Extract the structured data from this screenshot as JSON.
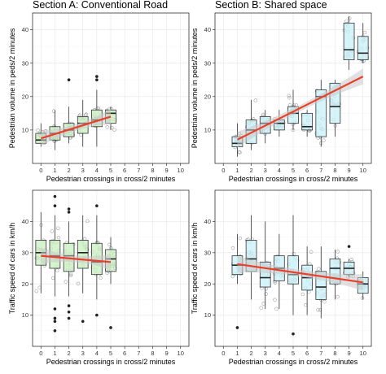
{
  "figure": {
    "section_a_title": "Section A: Conventional Road",
    "section_b_title": "Section B: Shared space",
    "colors": {
      "box_green": "#c8f0c0",
      "box_blue": "#c8f2fa",
      "fit_line": "#e8402a",
      "ribbon": "#c8c8c8",
      "points": "#888888"
    }
  },
  "chart_data": [
    {
      "type": "boxplot",
      "title": "Section A: Conventional Road",
      "xlabel": "Pedestrian crossings in cross/2 minutes",
      "ylabel": "Pedestrian volume in peds/2 minutes",
      "xlim": [
        0,
        10
      ],
      "ylim": [
        0,
        45
      ],
      "xticks": [
        0,
        1,
        2,
        3,
        4,
        5,
        6,
        7,
        8,
        9,
        10
      ],
      "yticks": [
        10,
        20,
        30,
        40
      ],
      "boxes": [
        {
          "x": 0,
          "min": 5,
          "q1": 6,
          "median": 7,
          "q3": 9,
          "max": 12
        },
        {
          "x": 1,
          "min": 4,
          "q1": 7,
          "median": 9,
          "q3": 11,
          "max": 16
        },
        {
          "x": 2,
          "min": 6,
          "q1": 8,
          "median": 10,
          "q3": 12,
          "max": 17,
          "outliers": [
            25
          ]
        },
        {
          "x": 3,
          "min": 5,
          "q1": 9,
          "median": 12,
          "q3": 14,
          "max": 19
        },
        {
          "x": 4,
          "min": 5,
          "q1": 11,
          "median": 13,
          "q3": 16,
          "max": 22,
          "outliers": [
            26,
            25
          ]
        },
        {
          "x": 5,
          "min": 10,
          "q1": 12,
          "median": 15,
          "q3": 16,
          "max": 17
        }
      ],
      "trend": {
        "intercept": 7.5,
        "slope": 1.3,
        "x_range": [
          0,
          5
        ]
      }
    },
    {
      "type": "boxplot",
      "title": "Section B: Shared space",
      "xlabel": "Pedestrian crossings in cross/2 minutes",
      "ylabel": "Pedestrian volume in peds/2 minutes",
      "xlim": [
        0,
        10
      ],
      "ylim": [
        0,
        45
      ],
      "xticks": [
        0,
        1,
        2,
        3,
        4,
        5,
        6,
        7,
        8,
        9,
        10
      ],
      "yticks": [
        10,
        20,
        30,
        40
      ],
      "boxes": [
        {
          "x": 1,
          "min": 2,
          "q1": 5,
          "median": 6,
          "q3": 8,
          "max": 12
        },
        {
          "x": 2,
          "min": 4,
          "q1": 6,
          "median": 10,
          "q3": 13,
          "max": 19
        },
        {
          "x": 3,
          "min": 6,
          "q1": 9,
          "median": 12,
          "q3": 14,
          "max": 16
        },
        {
          "x": 4,
          "min": 8,
          "q1": 10,
          "median": 12,
          "q3": 13,
          "max": 16
        },
        {
          "x": 5,
          "min": 10,
          "q1": 12,
          "median": 15,
          "q3": 17,
          "max": 22
        },
        {
          "x": 6,
          "min": 8,
          "q1": 10,
          "median": 11,
          "q3": 15,
          "max": 16
        },
        {
          "x": 7,
          "min": 5,
          "q1": 8,
          "median": 20,
          "q3": 22,
          "max": 25
        },
        {
          "x": 8,
          "min": 8,
          "q1": 12,
          "median": 17,
          "q3": 24,
          "max": 25
        },
        {
          "x": 9,
          "min": 28,
          "q1": 31,
          "median": 34,
          "q3": 42,
          "max": 44
        },
        {
          "x": 10,
          "min": 30,
          "q1": 31,
          "median": 33,
          "q3": 38,
          "max": 42
        }
      ],
      "trend": {
        "intercept": 5.0,
        "slope": 2.1,
        "x_range": [
          1,
          10
        ]
      }
    },
    {
      "type": "boxplot",
      "xlabel": "Pedestrian crossings in cross/2 minutes",
      "ylabel": "Traffic speed of cars in km/h",
      "xlim": [
        0,
        10
      ],
      "ylim": [
        0,
        50
      ],
      "xticks": [
        0,
        1,
        2,
        3,
        4,
        5,
        6,
        7,
        8,
        9,
        10
      ],
      "yticks": [
        10,
        20,
        30,
        40
      ],
      "boxes": [
        {
          "x": 0,
          "min": 17,
          "q1": 26,
          "median": 30,
          "q3": 34,
          "max": 43
        },
        {
          "x": 1,
          "min": 16,
          "q1": 25,
          "median": 29,
          "q3": 34,
          "max": 42,
          "outliers": [
            48,
            45,
            12,
            9,
            8,
            5
          ]
        },
        {
          "x": 2,
          "min": 16,
          "q1": 24,
          "median": 29,
          "q3": 33,
          "max": 40,
          "outliers": [
            44,
            43,
            13,
            11,
            9
          ]
        },
        {
          "x": 3,
          "min": 17,
          "q1": 25,
          "median": 30,
          "q3": 34,
          "max": 42,
          "outliers": [
            8
          ]
        },
        {
          "x": 4,
          "min": 15,
          "q1": 23,
          "median": 27,
          "q3": 33,
          "max": 42,
          "outliers": [
            45,
            10
          ]
        },
        {
          "x": 5,
          "min": 20,
          "q1": 24,
          "median": 28,
          "q3": 31,
          "max": 35,
          "outliers": [
            6
          ]
        }
      ],
      "trend": {
        "intercept": 29.0,
        "slope": -0.4,
        "x_range": [
          0,
          5
        ]
      }
    },
    {
      "type": "boxplot",
      "xlabel": "Pedestrian crossings in cross/2 minutes",
      "ylabel": "Traffic speed of cars in km/h",
      "xlim": [
        0,
        10
      ],
      "ylim": [
        0,
        50
      ],
      "xticks": [
        0,
        1,
        2,
        3,
        4,
        5,
        6,
        7,
        8,
        9,
        10
      ],
      "yticks": [
        10,
        20,
        30,
        40
      ],
      "boxes": [
        {
          "x": 1,
          "min": 20,
          "q1": 23,
          "median": 26,
          "q3": 29,
          "max": 36,
          "outliers": [
            6
          ]
        },
        {
          "x": 2,
          "min": 15,
          "q1": 24,
          "median": 28,
          "q3": 34,
          "max": 42
        },
        {
          "x": 3,
          "min": 12,
          "q1": 19,
          "median": 22,
          "q3": 27,
          "max": 40
        },
        {
          "x": 4,
          "min": 12,
          "q1": 21,
          "median": 25,
          "q3": 29,
          "max": 36
        },
        {
          "x": 5,
          "min": 10,
          "q1": 20,
          "median": 23,
          "q3": 29,
          "max": 42,
          "outliers": [
            4
          ]
        },
        {
          "x": 6,
          "min": 10,
          "q1": 18,
          "median": 22,
          "q3": 26,
          "max": 32
        },
        {
          "x": 7,
          "min": 9,
          "q1": 15,
          "median": 19,
          "q3": 24,
          "max": 32
        },
        {
          "x": 8,
          "min": 15,
          "q1": 20,
          "median": 25,
          "q3": 28,
          "max": 31
        },
        {
          "x": 9,
          "min": 22,
          "q1": 23,
          "median": 25,
          "q3": 27,
          "max": 28,
          "outliers": [
            32
          ]
        },
        {
          "x": 10,
          "min": 15,
          "q1": 17,
          "median": 20,
          "q3": 22,
          "max": 24
        }
      ],
      "trend": {
        "intercept": 27.0,
        "slope": -0.65,
        "x_range": [
          1,
          10
        ]
      }
    }
  ]
}
